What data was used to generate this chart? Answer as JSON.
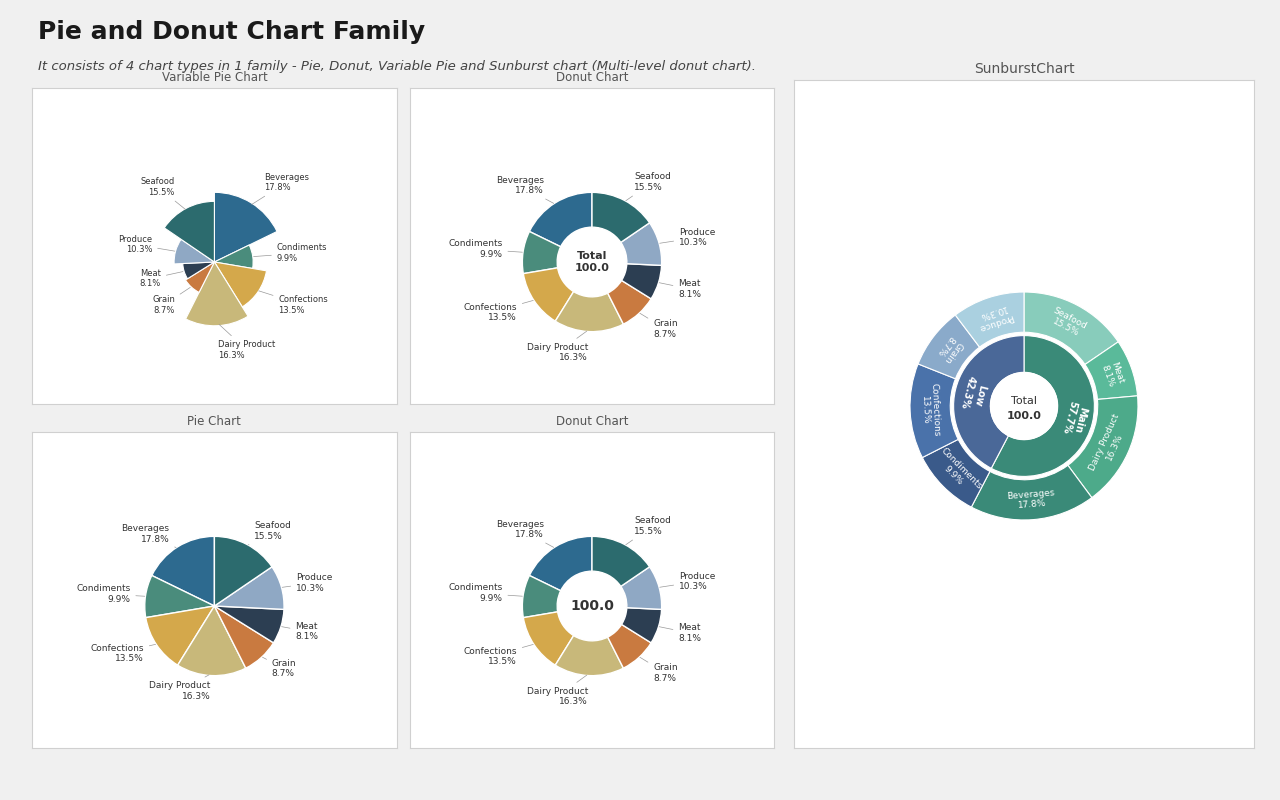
{
  "title": "Pie and Donut Chart Family",
  "subtitle": "It consists of 4 chart types in 1 family - Pie, Donut, Variable Pie and Sunburst chart (Multi-level donut chart).",
  "categories": [
    "Beverages",
    "Condiments",
    "Confections",
    "Dairy Product",
    "Grain",
    "Meat",
    "Produce",
    "Seafood"
  ],
  "values": [
    17.8,
    9.9,
    13.5,
    16.3,
    8.7,
    8.1,
    10.3,
    15.5
  ],
  "colors": [
    "#2d6a8f",
    "#4a8c7c",
    "#d4a84b",
    "#c8b87a",
    "#c97a40",
    "#2c3e52",
    "#8fa8c4",
    "#2c6b6e"
  ],
  "sunburst_inner_colors": [
    "#3a8a78",
    "#4a6898"
  ],
  "sunburst_outer_colors": [
    "#3a8a78",
    "#4daa8a",
    "#5aba9a",
    "#88ccbb",
    "#3a5a8a",
    "#4a72aa",
    "#8aaaca",
    "#aad0e0"
  ],
  "bg_color": "#f0f0f0",
  "chart_bg": "#ffffff",
  "panel_edge": "#d0d0d0"
}
